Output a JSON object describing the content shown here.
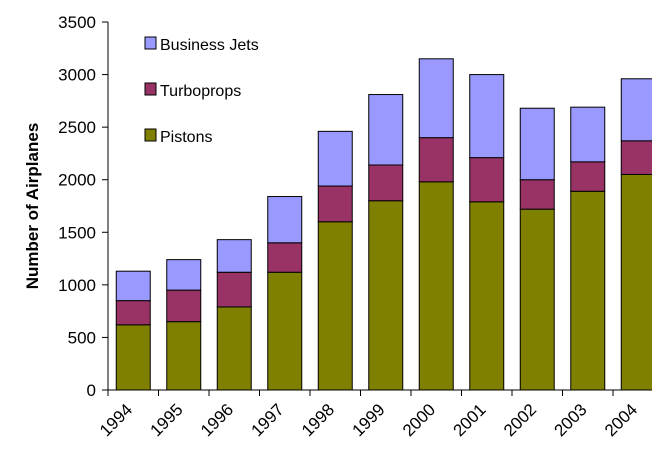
{
  "chart_data": {
    "type": "bar",
    "stacked": true,
    "categories": [
      "1994",
      "1995",
      "1996",
      "1997",
      "1998",
      "1999",
      "2000",
      "2001",
      "2002",
      "2003",
      "2004"
    ],
    "series": [
      {
        "name": "Pistons",
        "color": "#808000",
        "values": [
          620,
          650,
          790,
          1120,
          1600,
          1800,
          1980,
          1790,
          1720,
          1890,
          2050
        ]
      },
      {
        "name": "Turboprops",
        "color": "#993366",
        "values": [
          230,
          300,
          330,
          280,
          340,
          340,
          420,
          420,
          280,
          280,
          320
        ]
      },
      {
        "name": "Business Jets",
        "color": "#9999ff",
        "values": [
          280,
          290,
          310,
          440,
          520,
          670,
          750,
          790,
          680,
          520,
          590
        ]
      }
    ],
    "legend_order": [
      "Business Jets",
      "Turboprops",
      "Pistons"
    ],
    "title": "",
    "xlabel": "",
    "ylabel": "Number of Airplanes",
    "ylim": [
      0,
      3500
    ],
    "yticks": [
      0,
      500,
      1000,
      1500,
      2000,
      2500,
      3000,
      3500
    ],
    "grid": false,
    "legend_position": "top-left"
  }
}
